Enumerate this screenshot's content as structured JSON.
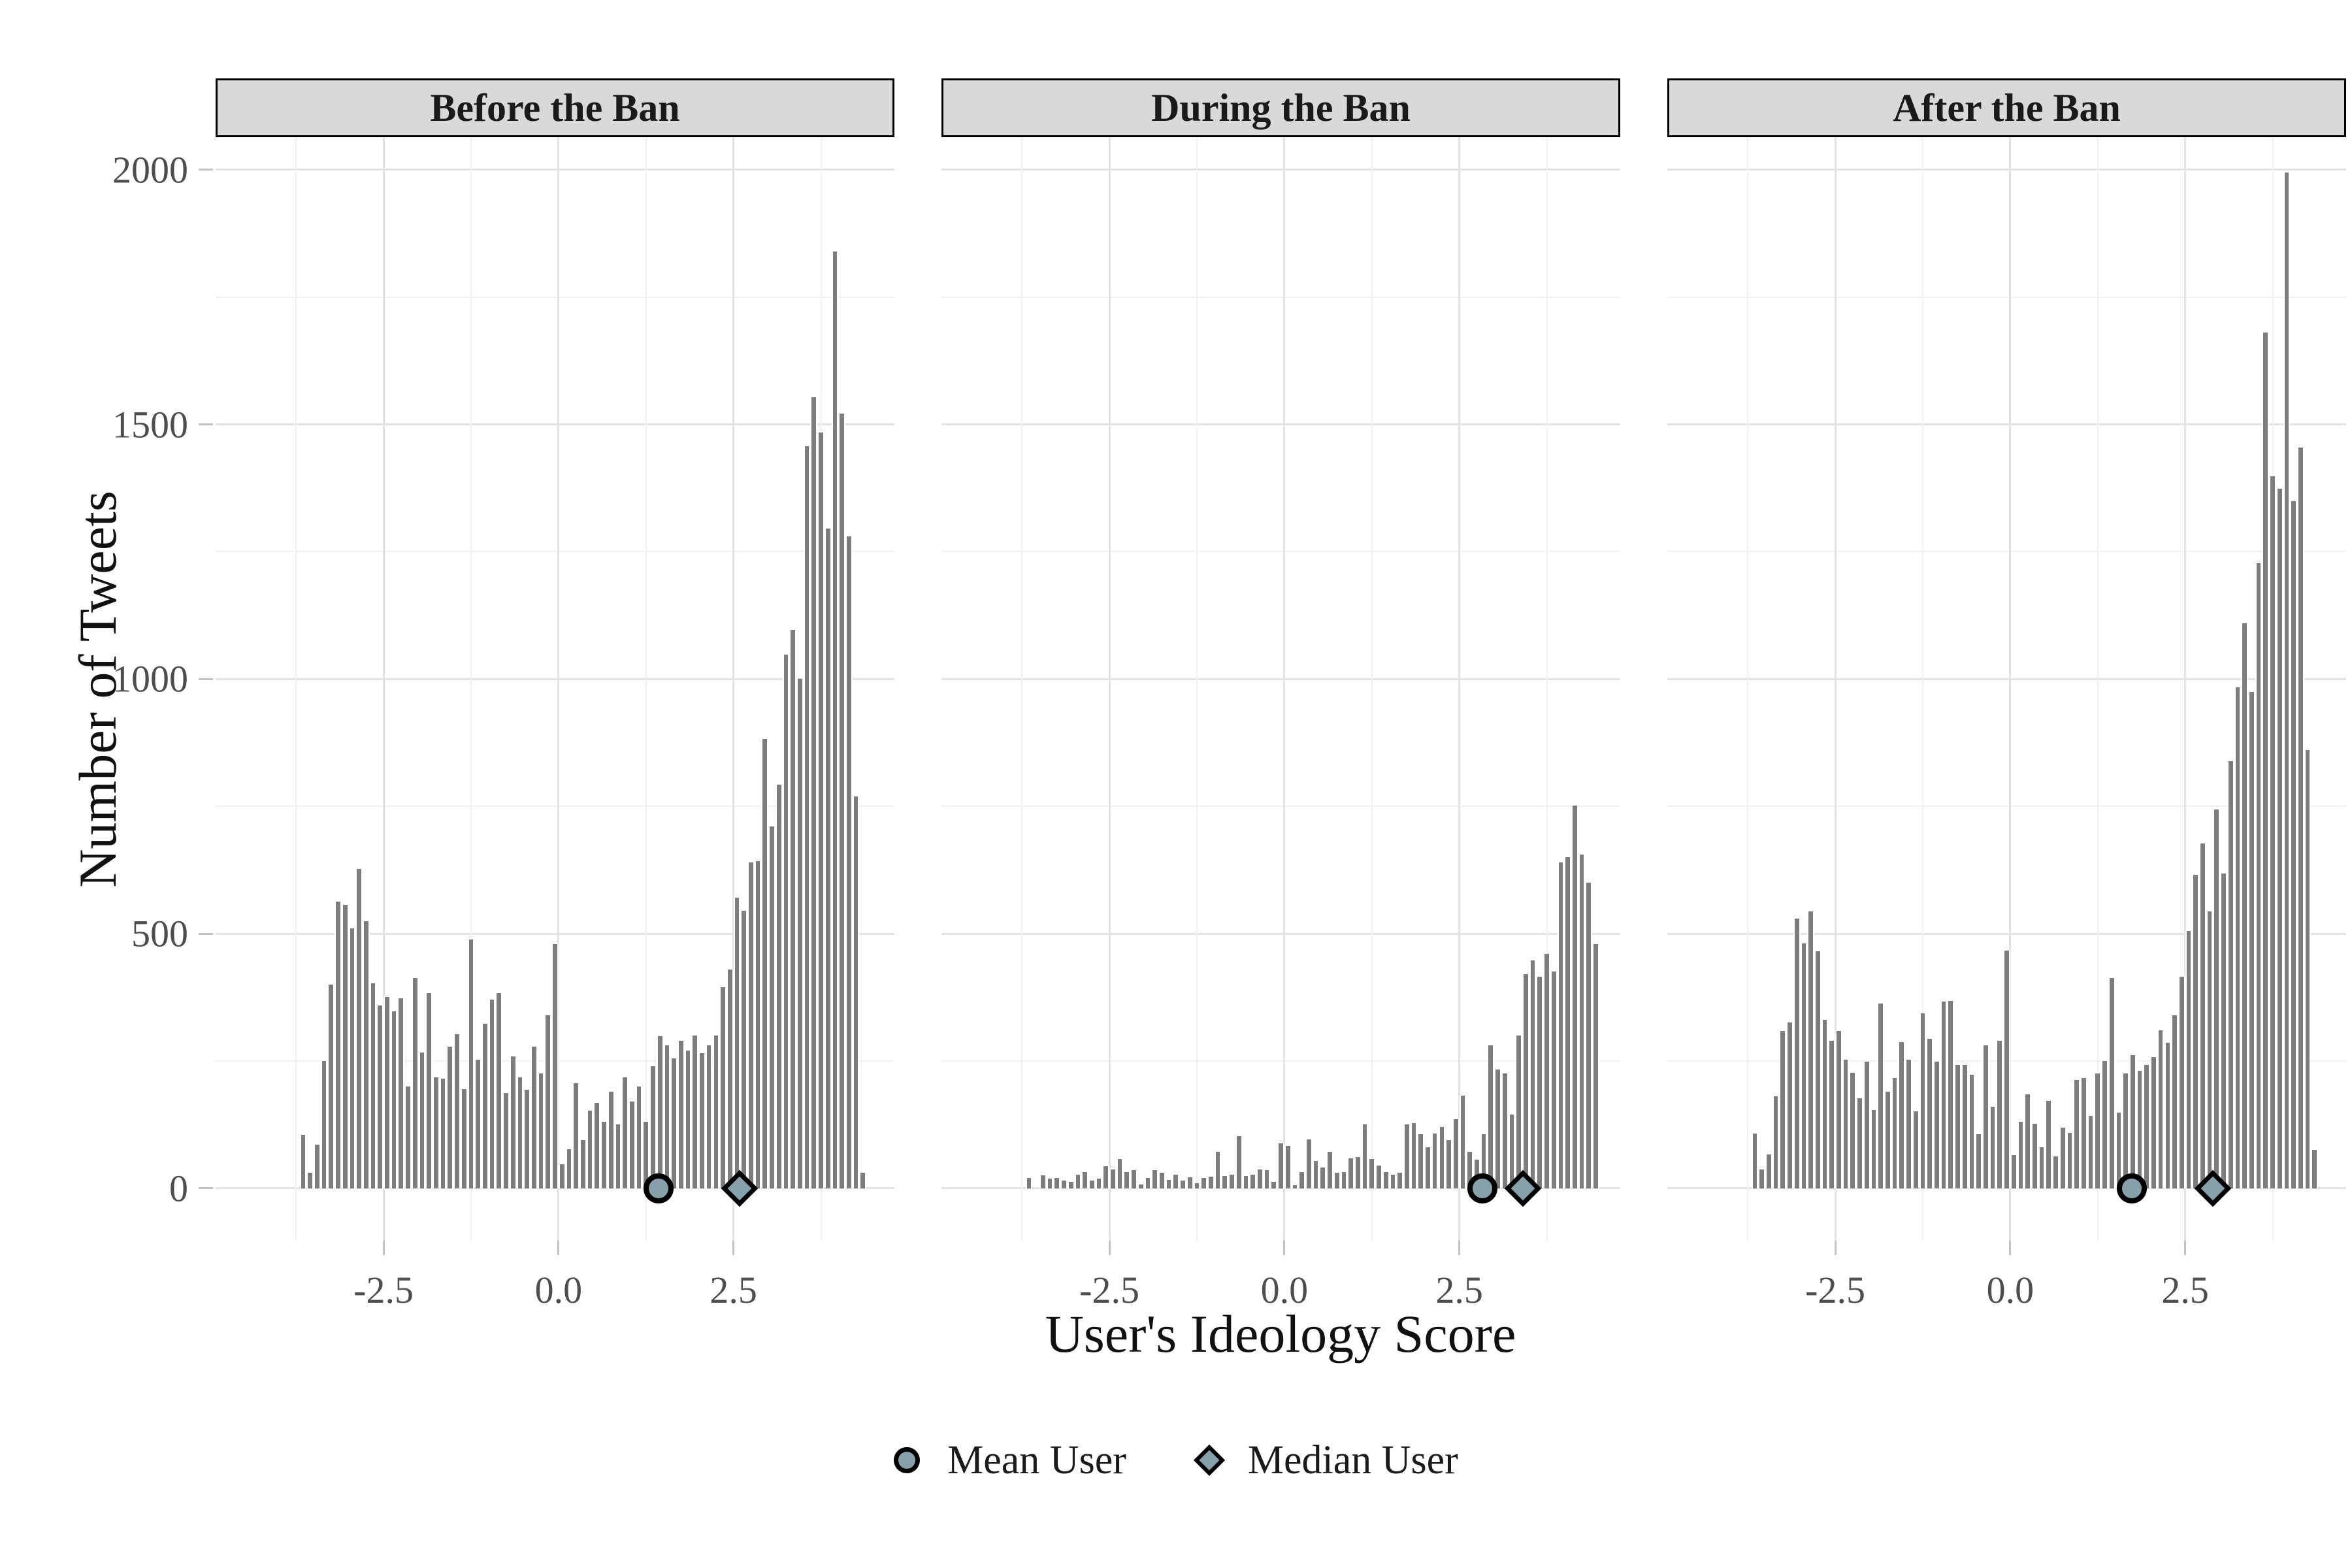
{
  "figure": {
    "xlabel": "User's Ideology Score",
    "ylabel": "Number of Tweets"
  },
  "legend": {
    "items": [
      {
        "marker": "circle-icon",
        "label": "Mean User"
      },
      {
        "marker": "diamond-icon",
        "label": "Median User"
      }
    ]
  },
  "chart_data": {
    "type": "bar",
    "subtype": "faceted-histogram",
    "title": "",
    "xlabel": "User's Ideology Score",
    "ylabel": "Number of Tweets",
    "bin_start": -3.65,
    "bin_width": 0.1,
    "x_range": [
      -4.9,
      4.8
    ],
    "y_range": [
      -103,
      2064
    ],
    "x_major_ticks": [
      {
        "v": -2.5,
        "label": "-2.5"
      },
      {
        "v": 0,
        "label": "0.0"
      },
      {
        "v": 2.5,
        "label": "2.5"
      }
    ],
    "x_minor_ticks": [
      -3.75,
      -1.25,
      1.25,
      3.75
    ],
    "y_major_ticks": [
      {
        "v": 0,
        "label": "0"
      },
      {
        "v": 500,
        "label": "500"
      },
      {
        "v": 1000,
        "label": "1000"
      },
      {
        "v": 1500,
        "label": "1500"
      },
      {
        "v": 2000,
        "label": "2000"
      }
    ],
    "y_minor_ticks": [
      250,
      750,
      1250,
      1750
    ],
    "grid": true,
    "legend_position": "bottom",
    "colors": {
      "bar_fill": "#7d7d7d",
      "bar_edge": "#ffffff",
      "marker_fill": "#87a1ab",
      "marker_stroke": "#000000",
      "strip_bg": "#d9d9d9",
      "strip_border": "#000000",
      "grid_major": "#e3e3e3",
      "grid_minor": "#f1f1f1",
      "tick": "#c2c2c2",
      "tick_label": "#4d4d4d",
      "axis_title": "#111111"
    },
    "facets": [
      {
        "title": "Before the Ban",
        "mean": 1.43,
        "median": 2.59,
        "values": [
          105,
          30,
          85,
          250,
          400,
          563,
          557,
          510,
          627,
          525,
          403,
          359,
          375,
          347,
          373,
          200,
          413,
          266,
          383,
          218,
          215,
          278,
          302,
          195,
          489,
          253,
          323,
          370,
          383,
          187,
          259,
          218,
          193,
          278,
          225,
          340,
          480,
          47,
          76,
          206,
          95,
          152,
          168,
          130,
          190,
          125,
          218,
          170,
          200,
          130,
          240,
          298,
          280,
          255,
          290,
          270,
          300,
          265,
          280,
          300,
          395,
          430,
          570,
          545,
          640,
          642,
          882,
          710,
          792,
          1048,
          1097,
          1000,
          1457,
          1554,
          1484,
          1296,
          1839,
          1521,
          1280,
          769,
          30,
          0
        ]
      },
      {
        "title": "During the Ban",
        "mean": 2.83,
        "median": 3.41,
        "values": [
          20,
          0,
          25,
          19,
          20,
          15,
          13,
          27,
          32,
          15,
          19,
          43,
          37,
          58,
          32,
          36,
          7,
          20,
          36,
          30,
          16,
          27,
          15,
          21,
          10,
          20,
          23,
          71,
          24,
          26,
          102,
          24,
          27,
          37,
          36,
          12,
          88,
          83,
          6,
          32,
          96,
          54,
          41,
          71,
          30,
          32,
          59,
          61,
          125,
          58,
          45,
          32,
          27,
          30,
          126,
          128,
          106,
          80,
          107,
          120,
          95,
          135,
          182,
          71,
          56,
          106,
          280,
          233,
          226,
          145,
          300,
          420,
          448,
          415,
          460,
          425,
          640,
          650,
          752,
          655,
          600,
          480
        ]
      },
      {
        "title": "After the Ban",
        "mean": 1.74,
        "median": 2.9,
        "values": [
          108,
          37,
          66,
          181,
          309,
          326,
          530,
          481,
          543,
          465,
          331,
          290,
          309,
          253,
          227,
          177,
          249,
          154,
          363,
          189,
          217,
          287,
          252,
          151,
          344,
          293,
          249,
          366,
          368,
          242,
          242,
          223,
          106,
          280,
          160,
          290,
          467,
          65,
          130,
          184,
          127,
          81,
          171,
          62,
          119,
          109,
          212,
          217,
          142,
          225,
          250,
          413,
          148,
          225,
          262,
          230,
          242,
          258,
          310,
          286,
          340,
          415,
          505,
          615,
          677,
          543,
          744,
          618,
          839,
          984,
          1110,
          975,
          1228,
          1680,
          1398,
          1374,
          1995,
          1349,
          1454,
          860,
          75,
          0
        ]
      }
    ]
  }
}
